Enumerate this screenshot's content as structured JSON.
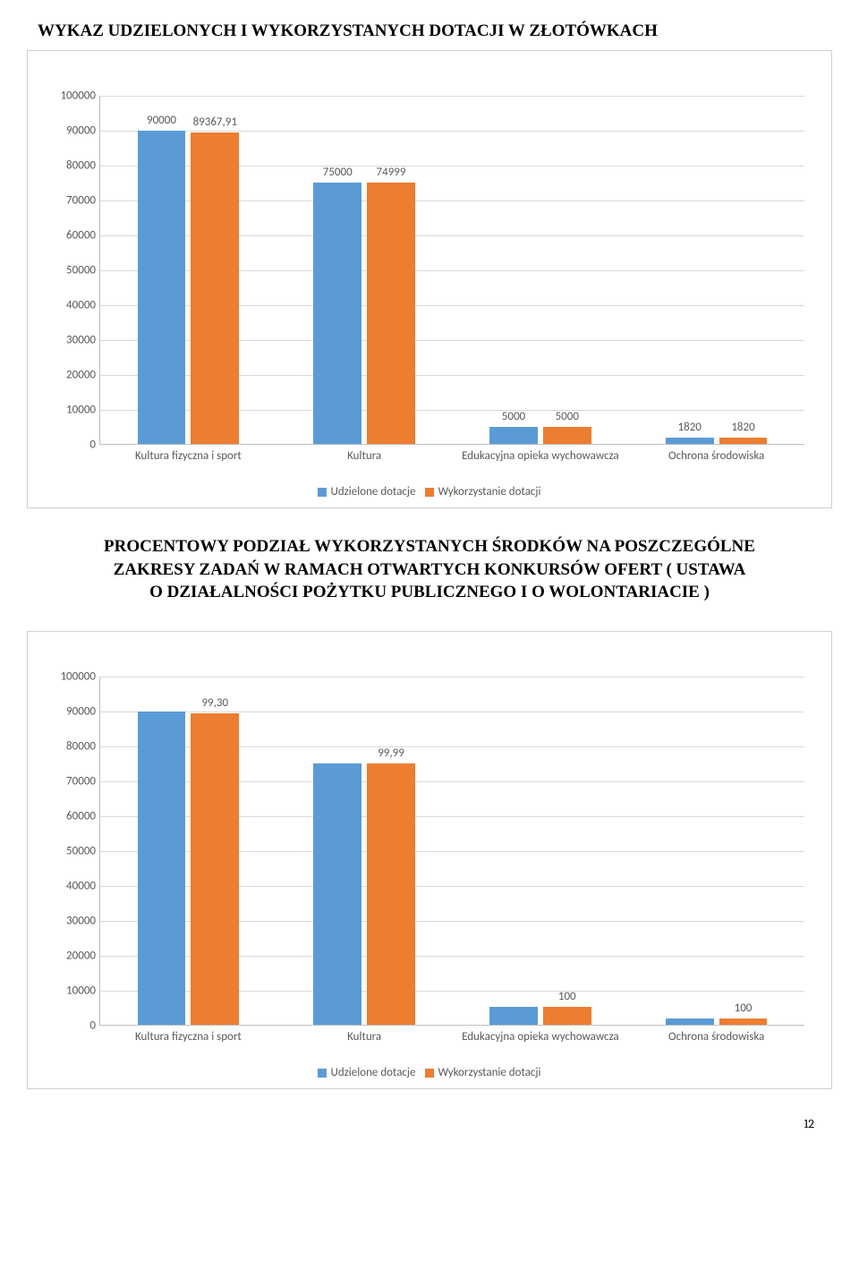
{
  "title_top": "WYKAZ UDZIELONYCH I WYKORZYSTANYCH DOTACJI W ZŁOTÓWKACH",
  "title_mid_line1": "PROCENTOWY PODZIAŁ WYKORZYSTANYCH ŚRODKÓW NA POSZCZEGÓLNE",
  "title_mid_line2": "ZAKRESY ZADAŃ W RAMACH OTWARTYCH KONKURSÓW OFERT ( USTAWA",
  "title_mid_line3": "O DZIAŁALNOŚCI POŻYTKU PUBLICZNEGO I O WOLONTARIACIE )",
  "legend": {
    "series_a": "Udzielone dotacje",
    "series_b": "Wykorzystanie dotacji",
    "color_a": "#5b9bd5",
    "color_b": "#ed7d31"
  },
  "categories": [
    "Kultura fizyczna i sport",
    "Kultura",
    "Edukacyjna opieka wychowawcza",
    "Ochrona środowiska"
  ],
  "chart1": {
    "ymin": 0,
    "ymax": 100000,
    "ystep": 10000,
    "bars_a": [
      90000,
      75000,
      5000,
      1820
    ],
    "bars_b": [
      89367.91,
      74999,
      5000,
      1820
    ],
    "labels_a": [
      "90000",
      "75000",
      "5000",
      "1820"
    ],
    "labels_b": [
      "89367,91",
      "74999",
      "5000",
      "1820"
    ],
    "yticks": [
      "0",
      "10000",
      "20000",
      "30000",
      "40000",
      "50000",
      "60000",
      "70000",
      "80000",
      "90000",
      "100000"
    ]
  },
  "chart2": {
    "ymin": 0,
    "ymax": 100000,
    "ystep": 10000,
    "bars_a": [
      90000,
      75000,
      5000,
      1820
    ],
    "bars_b": [
      89367.91,
      74999,
      5000,
      1820
    ],
    "labels_a": [
      "",
      "",
      "",
      ""
    ],
    "labels_b": [
      "99,30",
      "99,99",
      "100",
      "100"
    ],
    "yticks": [
      "0",
      "10000",
      "20000",
      "30000",
      "40000",
      "50000",
      "60000",
      "70000",
      "80000",
      "90000",
      "100000"
    ]
  },
  "page_number": "12"
}
